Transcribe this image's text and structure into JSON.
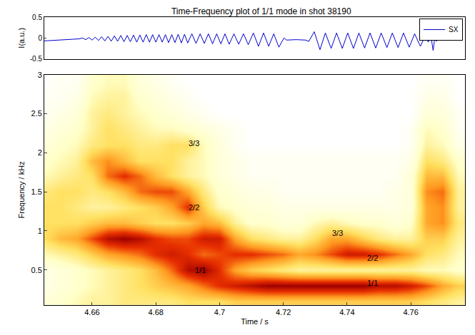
{
  "chart_data": [
    {
      "type": "line",
      "title": "Time-Frequency plot of 1/1 mode in shot 38190",
      "ylabel": "I(a.u.)",
      "xlim": [
        4.645,
        4.777
      ],
      "ylim": [
        -0.5,
        0.5
      ],
      "yticks": [
        -0.5,
        0,
        0.5
      ],
      "tick_labels": "y",
      "legend": "upper right",
      "grid": false,
      "series": [
        {
          "name": "SX",
          "color": "#0000cc",
          "x": [
            4.645,
            4.648,
            4.651,
            4.654,
            4.656,
            4.657,
            4.658,
            4.659,
            4.66,
            4.661,
            4.662,
            4.663,
            4.664,
            4.665,
            4.666,
            4.667,
            4.668,
            4.669,
            4.67,
            4.671,
            4.672,
            4.673,
            4.674,
            4.675,
            4.676,
            4.677,
            4.678,
            4.679,
            4.68,
            4.681,
            4.682,
            4.683,
            4.684,
            4.685,
            4.686,
            4.687,
            4.688,
            4.689,
            4.69,
            4.6913,
            4.6926,
            4.6939,
            4.6952,
            4.6965,
            4.6978,
            4.6991,
            4.7004,
            4.7017,
            4.703,
            4.7045,
            4.706,
            4.7075,
            4.709,
            4.7106,
            4.7122,
            4.7138,
            4.7154,
            4.717,
            4.7186,
            4.7202,
            4.721,
            4.724,
            4.727,
            4.728,
            4.7297,
            4.7315,
            4.7332,
            4.735,
            4.7367,
            4.7385,
            4.7402,
            4.742,
            4.7437,
            4.7455,
            4.7472,
            4.749,
            4.7507,
            4.7525,
            4.7542,
            4.756,
            4.7577,
            4.7595,
            4.7612,
            4.763,
            4.7645,
            4.7655,
            4.766,
            4.7665,
            4.767,
            4.7675,
            4.768,
            4.769,
            4.77,
            4.771,
            4.772,
            4.773,
            4.774,
            4.775,
            4.776
          ],
          "values": [
            -0.07,
            -0.06,
            -0.045,
            -0.03,
            -0.02,
            0.0,
            -0.04,
            0.01,
            -0.05,
            0.02,
            -0.06,
            0.03,
            -0.07,
            0.04,
            -0.08,
            0.05,
            -0.08,
            0.06,
            -0.09,
            0.06,
            -0.09,
            0.07,
            -0.1,
            0.07,
            -0.1,
            0.08,
            -0.1,
            0.08,
            -0.1,
            0.08,
            -0.1,
            0.08,
            -0.11,
            0.08,
            -0.11,
            0.09,
            -0.12,
            0.09,
            -0.12,
            0.1,
            -0.13,
            0.1,
            -0.13,
            0.1,
            -0.14,
            0.1,
            -0.14,
            0.1,
            -0.15,
            0.1,
            -0.15,
            0.1,
            -0.16,
            0.12,
            -0.2,
            0.12,
            -0.2,
            0.1,
            -0.22,
            0.0,
            -0.05,
            -0.04,
            -0.05,
            -0.08,
            0.15,
            -0.28,
            0.12,
            -0.25,
            0.12,
            -0.25,
            0.12,
            -0.25,
            0.12,
            -0.24,
            0.12,
            -0.24,
            0.12,
            -0.23,
            0.12,
            -0.23,
            0.12,
            -0.22,
            0.1,
            -0.2,
            0.05,
            -0.1,
            0.05,
            -0.05,
            -0.3,
            0.0,
            -0.08,
            0.03,
            -0.06,
            0.02,
            -0.04,
            0.01,
            -0.03,
            0.0,
            -0.02
          ]
        }
      ]
    },
    {
      "type": "heatmap",
      "xlabel": "Time / s",
      "ylabel": "Frequency / kHz",
      "xlim": [
        4.645,
        4.777
      ],
      "xticks": [
        4.66,
        4.68,
        4.7,
        4.72,
        4.74,
        4.76
      ],
      "ylim": [
        0.05,
        3
      ],
      "yticks": [
        0.5,
        1,
        1.5,
        2,
        2.5,
        3
      ],
      "grid": false,
      "x": [
        4.645,
        4.65,
        4.655,
        4.66,
        4.665,
        4.67,
        4.675,
        4.68,
        4.685,
        4.69,
        4.695,
        4.7,
        4.705,
        4.71,
        4.715,
        4.72,
        4.725,
        4.73,
        4.735,
        4.74,
        4.745,
        4.75,
        4.755,
        4.76,
        4.765,
        4.77,
        4.775
      ],
      "y": [
        0.1,
        0.3,
        0.5,
        0.7,
        0.9,
        1.1,
        1.3,
        1.5,
        1.7,
        1.9,
        2.1,
        2.3,
        2.5,
        2.7,
        2.9
      ],
      "z": [
        [
          0.2,
          0.25,
          0.3,
          0.35,
          0.35,
          0.4,
          0.4,
          0.4,
          0.4,
          0.45,
          0.45,
          0.45,
          0.5,
          0.5,
          0.5,
          0.5,
          0.5,
          0.5,
          0.5,
          0.5,
          0.5,
          0.5,
          0.5,
          0.5,
          0.45,
          0.4,
          0.35
        ],
        [
          0.15,
          0.2,
          0.25,
          0.3,
          0.35,
          0.4,
          0.45,
          0.5,
          0.55,
          0.6,
          0.7,
          0.8,
          0.85,
          0.9,
          0.95,
          0.95,
          0.95,
          0.95,
          0.95,
          0.95,
          0.95,
          0.9,
          0.9,
          0.85,
          0.75,
          0.6,
          0.5
        ],
        [
          0.15,
          0.2,
          0.25,
          0.3,
          0.35,
          0.4,
          0.45,
          0.55,
          0.7,
          0.9,
          0.95,
          0.8,
          0.6,
          0.5,
          0.45,
          0.4,
          0.35,
          0.35,
          0.35,
          0.35,
          0.35,
          0.35,
          0.35,
          0.35,
          0.3,
          0.3,
          0.25
        ],
        [
          0.3,
          0.35,
          0.4,
          0.5,
          0.6,
          0.65,
          0.7,
          0.8,
          0.85,
          0.8,
          0.7,
          0.75,
          0.8,
          0.8,
          0.75,
          0.7,
          0.6,
          0.65,
          0.75,
          0.85,
          0.85,
          0.8,
          0.7,
          0.6,
          0.45,
          0.4,
          0.3
        ],
        [
          0.45,
          0.55,
          0.6,
          0.75,
          0.9,
          0.95,
          0.9,
          0.8,
          0.75,
          0.75,
          0.85,
          0.85,
          0.6,
          0.45,
          0.4,
          0.35,
          0.35,
          0.45,
          0.6,
          0.6,
          0.5,
          0.4,
          0.35,
          0.35,
          0.5,
          0.5,
          0.35
        ],
        [
          0.45,
          0.45,
          0.45,
          0.5,
          0.55,
          0.55,
          0.5,
          0.45,
          0.45,
          0.5,
          0.6,
          0.55,
          0.35,
          0.25,
          0.25,
          0.2,
          0.2,
          0.3,
          0.35,
          0.3,
          0.25,
          0.25,
          0.2,
          0.25,
          0.6,
          0.65,
          0.4
        ],
        [
          0.45,
          0.45,
          0.4,
          0.35,
          0.35,
          0.4,
          0.45,
          0.5,
          0.6,
          0.8,
          0.5,
          0.3,
          0.25,
          0.2,
          0.2,
          0.15,
          0.15,
          0.15,
          0.15,
          0.15,
          0.15,
          0.15,
          0.15,
          0.2,
          0.6,
          0.65,
          0.35
        ],
        [
          0.4,
          0.45,
          0.45,
          0.4,
          0.45,
          0.55,
          0.7,
          0.75,
          0.75,
          0.6,
          0.4,
          0.25,
          0.2,
          0.15,
          0.15,
          0.1,
          0.1,
          0.1,
          0.1,
          0.1,
          0.1,
          0.1,
          0.15,
          0.2,
          0.65,
          0.7,
          0.35
        ],
        [
          0.3,
          0.35,
          0.4,
          0.45,
          0.7,
          0.8,
          0.7,
          0.55,
          0.45,
          0.35,
          0.3,
          0.2,
          0.15,
          0.1,
          0.1,
          0.1,
          0.1,
          0.1,
          0.1,
          0.1,
          0.1,
          0.1,
          0.1,
          0.2,
          0.55,
          0.55,
          0.3
        ],
        [
          0.25,
          0.3,
          0.35,
          0.55,
          0.65,
          0.55,
          0.45,
          0.45,
          0.45,
          0.35,
          0.3,
          0.2,
          0.15,
          0.1,
          0.1,
          0.1,
          0.1,
          0.1,
          0.1,
          0.1,
          0.1,
          0.1,
          0.1,
          0.15,
          0.45,
          0.4,
          0.25
        ],
        [
          0.2,
          0.25,
          0.3,
          0.4,
          0.45,
          0.45,
          0.4,
          0.4,
          0.45,
          0.45,
          0.3,
          0.2,
          0.1,
          0.05,
          0.05,
          0.05,
          0.05,
          0.05,
          0.05,
          0.05,
          0.05,
          0.05,
          0.05,
          0.1,
          0.35,
          0.3,
          0.15
        ],
        [
          0.15,
          0.2,
          0.25,
          0.35,
          0.45,
          0.4,
          0.35,
          0.3,
          0.3,
          0.25,
          0.2,
          0.15,
          0.1,
          0.05,
          0.05,
          0.05,
          0.05,
          0.05,
          0.05,
          0.05,
          0.05,
          0.05,
          0.05,
          0.1,
          0.3,
          0.25,
          0.1
        ],
        [
          0.1,
          0.15,
          0.2,
          0.35,
          0.4,
          0.35,
          0.3,
          0.25,
          0.2,
          0.15,
          0.1,
          0.05,
          0.05,
          0.05,
          0.05,
          0.05,
          0.05,
          0.05,
          0.05,
          0.05,
          0.05,
          0.05,
          0.05,
          0.05,
          0.2,
          0.2,
          0.1
        ],
        [
          0.1,
          0.1,
          0.15,
          0.3,
          0.35,
          0.35,
          0.25,
          0.2,
          0.15,
          0.1,
          0.05,
          0.05,
          0.05,
          0.05,
          0.05,
          0.05,
          0.05,
          0.05,
          0.05,
          0.05,
          0.05,
          0.05,
          0.05,
          0.05,
          0.15,
          0.15,
          0.05
        ],
        [
          0.05,
          0.1,
          0.1,
          0.25,
          0.3,
          0.3,
          0.2,
          0.15,
          0.1,
          0.05,
          0.05,
          0.05,
          0.05,
          0.05,
          0.05,
          0.05,
          0.05,
          0.05,
          0.05,
          0.05,
          0.05,
          0.05,
          0.05,
          0.05,
          0.1,
          0.1,
          0.05
        ]
      ],
      "annotations": [
        {
          "text": "3/3",
          "x": 4.692,
          "y": 2.12
        },
        {
          "text": "2/2",
          "x": 4.692,
          "y": 1.3
        },
        {
          "text": "1/1",
          "x": 4.694,
          "y": 0.5
        },
        {
          "text": "3/3",
          "x": 4.737,
          "y": 0.97
        },
        {
          "text": "2/2",
          "x": 4.748,
          "y": 0.65
        },
        {
          "text": "1/1",
          "x": 4.748,
          "y": 0.33
        }
      ]
    }
  ]
}
